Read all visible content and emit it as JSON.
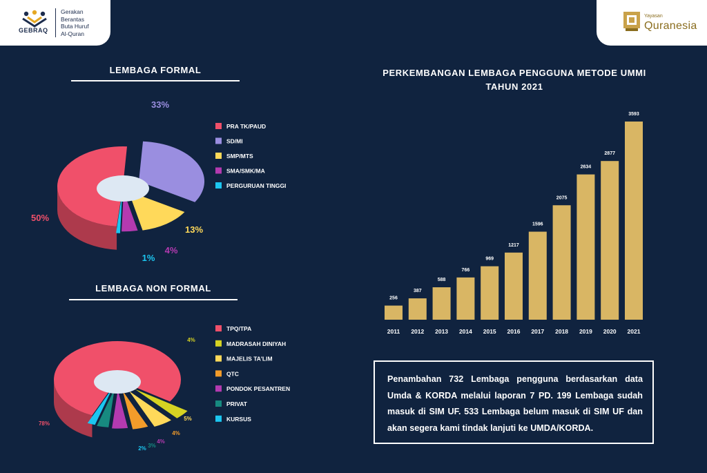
{
  "branding": {
    "left_logo_word": "GEBRAQ",
    "left_tagline": [
      "Gerakan",
      "Berantas",
      "Buta Huruf",
      "Al-Quran"
    ],
    "right_logo_small": "Yayasan",
    "right_logo_name": "Quranesia"
  },
  "colors": {
    "background": "#10233f",
    "bar": "#d9b664",
    "pink": "#f0506a",
    "purple": "#9a8ee0",
    "yellow": "#ffd95a",
    "magenta": "#b43ab0",
    "cyan": "#1cc6f0",
    "olive": "#d6d322",
    "orange": "#f39c2a",
    "teal": "#178a80"
  },
  "formal": {
    "title": "LEMBAGA FORMAL"
  },
  "nonformal": {
    "title": "LEMBAGA NON FORMAL"
  },
  "growth": {
    "title_line1": "PERKEMBANGAN LEMBAGA PENGGUNA METODE UMMI",
    "title_line2": "TAHUN 2021"
  },
  "info": {
    "text": "Penambahan 732 Lembaga pengguna berdasarkan data Umda & KORDA melalui laporan 7 PD. 199 Lembaga sudah masuk di SIM UF. 533 Lembaga belum masuk di SIM UF dan akan segera kami tindak lanjuti ke UMDA/KORDA."
  },
  "chart_data": [
    {
      "type": "pie",
      "title": "LEMBAGA FORMAL",
      "legend_position": "right",
      "slices": [
        {
          "name": "PRA TK/PAUD",
          "value": 50,
          "label": "50%",
          "color": "#f0506a"
        },
        {
          "name": "SD/MI",
          "value": 33,
          "label": "33%",
          "color": "#9a8ee0"
        },
        {
          "name": "SMP/MTS",
          "value": 13,
          "label": "13%",
          "color": "#ffd95a"
        },
        {
          "name": "SMA/SMK/MA",
          "value": 4,
          "label": "4%",
          "color": "#b43ab0"
        },
        {
          "name": "PERGURUAN TINGGI",
          "value": 1,
          "label": "1%",
          "color": "#1cc6f0"
        }
      ]
    },
    {
      "type": "pie",
      "title": "LEMBAGA NON FORMAL",
      "legend_position": "right",
      "slices": [
        {
          "name": "TPQ/TPA",
          "value": 78,
          "label": "78%",
          "color": "#f0506a"
        },
        {
          "name": "MADRASAH DINIYAH",
          "value": 4,
          "label": "4%",
          "color": "#d6d322"
        },
        {
          "name": "MAJELIS TA'LIM",
          "value": 5,
          "label": "5%",
          "color": "#ffd95a"
        },
        {
          "name": "QTC",
          "value": 4,
          "label": "4%",
          "color": "#f39c2a"
        },
        {
          "name": "PONDOK PESANTREN",
          "value": 4,
          "label": "4%",
          "color": "#b43ab0"
        },
        {
          "name": "PRIVAT",
          "value": 3,
          "label": "3%",
          "color": "#178a80"
        },
        {
          "name": "KURSUS",
          "value": 2,
          "label": "2%",
          "color": "#1cc6f0"
        }
      ]
    },
    {
      "type": "bar",
      "title": "PERKEMBANGAN LEMBAGA PENGGUNA METODE UMMI TAHUN 2021",
      "categories": [
        "2011",
        "2012",
        "2013",
        "2014",
        "2015",
        "2016",
        "2017",
        "2018",
        "2019",
        "2020",
        "2021"
      ],
      "values": [
        256,
        387,
        588,
        766,
        969,
        1217,
        1596,
        2075,
        2634,
        2877,
        3593
      ],
      "ylim": [
        0,
        3593
      ],
      "grid": false
    }
  ]
}
